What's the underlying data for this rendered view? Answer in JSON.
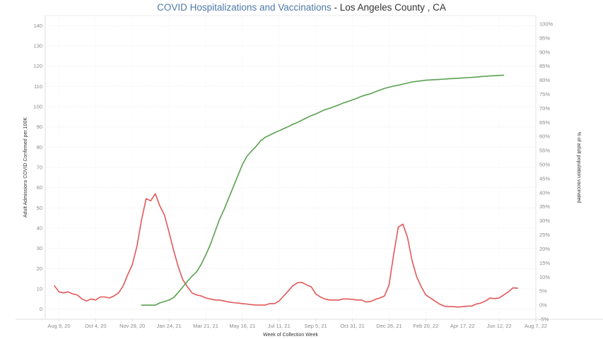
{
  "chart_data": {
    "type": "line",
    "title": "COVID Hospitalizations and Vaccinations",
    "subtitle": "Los Angeles County , CA",
    "xlabel": "Week of Collection Week",
    "ylabel_left": "Adult Admissions COVID Confirmed per 100K",
    "ylabel_right": "% of adult population vaccinated",
    "ylim_left": [
      -5,
      145
    ],
    "ylim_right": [
      -5,
      103
    ],
    "yticks_left": [
      0,
      10,
      20,
      30,
      40,
      50,
      60,
      70,
      80,
      90,
      100,
      110,
      120,
      130,
      140
    ],
    "yticks_right": [
      -5,
      0,
      5,
      10,
      15,
      20,
      25,
      30,
      35,
      40,
      45,
      50,
      55,
      60,
      65,
      70,
      75,
      80,
      85,
      90,
      95,
      100
    ],
    "xlim": [
      "2020-07-19",
      "2022-08-07"
    ],
    "xticks": [
      {
        "label": "Aug 9, 20",
        "date": "2020-08-09"
      },
      {
        "label": "Oct 4, 20",
        "date": "2020-10-04"
      },
      {
        "label": "Nov 29, 20",
        "date": "2020-11-29"
      },
      {
        "label": "Jan 24, 21",
        "date": "2021-01-24"
      },
      {
        "label": "Mar 21, 21",
        "date": "2021-03-21"
      },
      {
        "label": "May 16, 21",
        "date": "2021-05-16"
      },
      {
        "label": "Jul 11, 21",
        "date": "2021-07-11"
      },
      {
        "label": "Sep 5, 21",
        "date": "2021-09-05"
      },
      {
        "label": "Oct 31, 21",
        "date": "2021-10-31"
      },
      {
        "label": "Dec 26, 21",
        "date": "2021-12-26"
      },
      {
        "label": "Feb 20, 22",
        "date": "2022-02-20"
      },
      {
        "label": "Apr 17, 22",
        "date": "2022-04-17"
      },
      {
        "label": "Jun 12, 22",
        "date": "2022-06-12"
      },
      {
        "label": "Aug 7, 22",
        "date": "2022-08-07"
      }
    ],
    "grid": true,
    "series": [
      {
        "axis": "left",
        "color": "#e15759",
        "points": [
          [
            "2020-08-02",
            11.5
          ],
          [
            "2020-08-09",
            8.5
          ],
          [
            "2020-08-16",
            8.0
          ],
          [
            "2020-08-23",
            8.5
          ],
          [
            "2020-08-30",
            7.5
          ],
          [
            "2020-09-06",
            7.0
          ],
          [
            "2020-09-13",
            5.0
          ],
          [
            "2020-09-20",
            4.0
          ],
          [
            "2020-09-27",
            5.0
          ],
          [
            "2020-10-04",
            4.5
          ],
          [
            "2020-10-11",
            6.0
          ],
          [
            "2020-10-18",
            6.0
          ],
          [
            "2020-10-25",
            5.5
          ],
          [
            "2020-11-01",
            6.5
          ],
          [
            "2020-11-08",
            8.0
          ],
          [
            "2020-11-15",
            11.5
          ],
          [
            "2020-11-22",
            17.0
          ],
          [
            "2020-11-29",
            22.0
          ],
          [
            "2020-12-06",
            31.0
          ],
          [
            "2020-12-13",
            44.0
          ],
          [
            "2020-12-20",
            54.5
          ],
          [
            "2020-12-27",
            53.5
          ],
          [
            "2021-01-03",
            57.0
          ],
          [
            "2021-01-10",
            51.0
          ],
          [
            "2021-01-17",
            46.5
          ],
          [
            "2021-01-24",
            38.0
          ],
          [
            "2021-01-31",
            29.0
          ],
          [
            "2021-02-07",
            21.0
          ],
          [
            "2021-02-14",
            14.5
          ],
          [
            "2021-02-21",
            11.0
          ],
          [
            "2021-02-28",
            8.0
          ],
          [
            "2021-03-07",
            7.0
          ],
          [
            "2021-03-14",
            6.5
          ],
          [
            "2021-03-21",
            5.5
          ],
          [
            "2021-03-28",
            5.0
          ],
          [
            "2021-04-04",
            4.5
          ],
          [
            "2021-04-11",
            4.5
          ],
          [
            "2021-04-18",
            4.0
          ],
          [
            "2021-04-25",
            3.5
          ],
          [
            "2021-05-02",
            3.2
          ],
          [
            "2021-05-09",
            3.0
          ],
          [
            "2021-05-16",
            2.7
          ],
          [
            "2021-05-23",
            2.5
          ],
          [
            "2021-05-30",
            2.2
          ],
          [
            "2021-06-06",
            2.0
          ],
          [
            "2021-06-13",
            2.0
          ],
          [
            "2021-06-20",
            2.0
          ],
          [
            "2021-06-27",
            2.7
          ],
          [
            "2021-07-04",
            2.7
          ],
          [
            "2021-07-11",
            4.0
          ],
          [
            "2021-07-18",
            6.5
          ],
          [
            "2021-07-25",
            9.0
          ],
          [
            "2021-08-01",
            11.5
          ],
          [
            "2021-08-08",
            13.0
          ],
          [
            "2021-08-15",
            13.2
          ],
          [
            "2021-08-22",
            12.0
          ],
          [
            "2021-08-29",
            11.0
          ],
          [
            "2021-09-05",
            7.5
          ],
          [
            "2021-09-12",
            6.0
          ],
          [
            "2021-09-19",
            5.0
          ],
          [
            "2021-09-26",
            4.5
          ],
          [
            "2021-10-03",
            4.5
          ],
          [
            "2021-10-10",
            4.5
          ],
          [
            "2021-10-17",
            5.0
          ],
          [
            "2021-10-24",
            5.0
          ],
          [
            "2021-10-31",
            4.8
          ],
          [
            "2021-11-07",
            4.5
          ],
          [
            "2021-11-14",
            4.5
          ],
          [
            "2021-11-21",
            3.5
          ],
          [
            "2021-11-28",
            3.8
          ],
          [
            "2021-12-05",
            4.8
          ],
          [
            "2021-12-12",
            5.5
          ],
          [
            "2021-12-19",
            6.5
          ],
          [
            "2021-12-26",
            12.0
          ],
          [
            "2022-01-02",
            27.0
          ],
          [
            "2022-01-09",
            40.5
          ],
          [
            "2022-01-16",
            42.0
          ],
          [
            "2022-01-23",
            35.5
          ],
          [
            "2022-01-30",
            24.0
          ],
          [
            "2022-02-06",
            16.0
          ],
          [
            "2022-02-13",
            11.0
          ],
          [
            "2022-02-20",
            7.0
          ],
          [
            "2022-02-27",
            5.5
          ],
          [
            "2022-03-06",
            4.0
          ],
          [
            "2022-03-13",
            2.5
          ],
          [
            "2022-03-20",
            1.5
          ],
          [
            "2022-03-27",
            1.2
          ],
          [
            "2022-04-03",
            1.2
          ],
          [
            "2022-04-10",
            1.0
          ],
          [
            "2022-04-17",
            1.2
          ],
          [
            "2022-04-24",
            1.5
          ],
          [
            "2022-05-01",
            1.5
          ],
          [
            "2022-05-08",
            2.5
          ],
          [
            "2022-05-15",
            3.0
          ],
          [
            "2022-05-22",
            4.0
          ],
          [
            "2022-05-29",
            5.5
          ],
          [
            "2022-06-05",
            5.2
          ],
          [
            "2022-06-12",
            5.5
          ],
          [
            "2022-06-19",
            7.0
          ],
          [
            "2022-06-26",
            8.5
          ],
          [
            "2022-07-03",
            10.5
          ],
          [
            "2022-07-10",
            10.3
          ]
        ]
      },
      {
        "axis": "right",
        "color": "#59a14f",
        "points": [
          [
            "2020-12-13",
            0.0
          ],
          [
            "2020-12-20",
            0.0
          ],
          [
            "2020-12-27",
            0.0
          ],
          [
            "2021-01-03",
            0.0
          ],
          [
            "2021-01-10",
            0.8
          ],
          [
            "2021-01-17",
            1.3
          ],
          [
            "2021-01-24",
            1.8
          ],
          [
            "2021-01-31",
            2.7
          ],
          [
            "2021-02-07",
            4.5
          ],
          [
            "2021-02-14",
            6.5
          ],
          [
            "2021-02-21",
            8.5
          ],
          [
            "2021-02-28",
            10.3
          ],
          [
            "2021-03-07",
            11.8
          ],
          [
            "2021-03-14",
            14.5
          ],
          [
            "2021-03-21",
            17.8
          ],
          [
            "2021-03-28",
            21.5
          ],
          [
            "2021-04-04",
            26.0
          ],
          [
            "2021-04-11",
            30.5
          ],
          [
            "2021-04-18",
            34.0
          ],
          [
            "2021-04-25",
            38.0
          ],
          [
            "2021-05-02",
            42.0
          ],
          [
            "2021-05-09",
            46.0
          ],
          [
            "2021-05-16",
            50.0
          ],
          [
            "2021-05-23",
            53.0
          ],
          [
            "2021-05-30",
            54.8
          ],
          [
            "2021-06-06",
            56.5
          ],
          [
            "2021-06-13",
            58.5
          ],
          [
            "2021-06-20",
            59.7
          ],
          [
            "2021-06-27",
            60.5
          ],
          [
            "2021-07-04",
            61.3
          ],
          [
            "2021-07-11",
            62.0
          ],
          [
            "2021-07-18",
            62.8
          ],
          [
            "2021-07-25",
            63.5
          ],
          [
            "2021-08-01",
            64.3
          ],
          [
            "2021-08-08",
            65.0
          ],
          [
            "2021-08-15",
            65.8
          ],
          [
            "2021-08-22",
            66.6
          ],
          [
            "2021-08-29",
            67.4
          ],
          [
            "2021-09-05",
            68.0
          ],
          [
            "2021-09-12",
            68.8
          ],
          [
            "2021-09-19",
            69.5
          ],
          [
            "2021-09-26",
            70.0
          ],
          [
            "2021-10-03",
            70.6
          ],
          [
            "2021-10-10",
            71.2
          ],
          [
            "2021-10-17",
            71.9
          ],
          [
            "2021-10-24",
            72.4
          ],
          [
            "2021-10-31",
            73.0
          ],
          [
            "2021-11-07",
            73.6
          ],
          [
            "2021-11-14",
            74.3
          ],
          [
            "2021-11-21",
            74.8
          ],
          [
            "2021-11-28",
            75.2
          ],
          [
            "2021-12-05",
            75.9
          ],
          [
            "2021-12-12",
            76.5
          ],
          [
            "2021-12-19",
            77.1
          ],
          [
            "2021-12-26",
            77.5
          ],
          [
            "2022-01-02",
            77.9
          ],
          [
            "2022-01-09",
            78.2
          ],
          [
            "2022-01-16",
            78.6
          ],
          [
            "2022-01-23",
            79.0
          ],
          [
            "2022-01-30",
            79.4
          ],
          [
            "2022-02-06",
            79.6
          ],
          [
            "2022-02-13",
            79.8
          ],
          [
            "2022-02-20",
            80.0
          ],
          [
            "2022-02-27",
            80.1
          ],
          [
            "2022-03-06",
            80.2
          ],
          [
            "2022-03-13",
            80.3
          ],
          [
            "2022-03-20",
            80.4
          ],
          [
            "2022-03-27",
            80.5
          ],
          [
            "2022-04-03",
            80.6
          ],
          [
            "2022-04-10",
            80.7
          ],
          [
            "2022-04-17",
            80.8
          ],
          [
            "2022-04-24",
            80.9
          ],
          [
            "2022-05-01",
            81.0
          ],
          [
            "2022-05-08",
            81.1
          ],
          [
            "2022-05-15",
            81.3
          ],
          [
            "2022-05-22",
            81.4
          ],
          [
            "2022-05-29",
            81.5
          ],
          [
            "2022-06-05",
            81.6
          ],
          [
            "2022-06-12",
            81.7
          ],
          [
            "2022-06-19",
            81.8
          ]
        ]
      }
    ]
  }
}
